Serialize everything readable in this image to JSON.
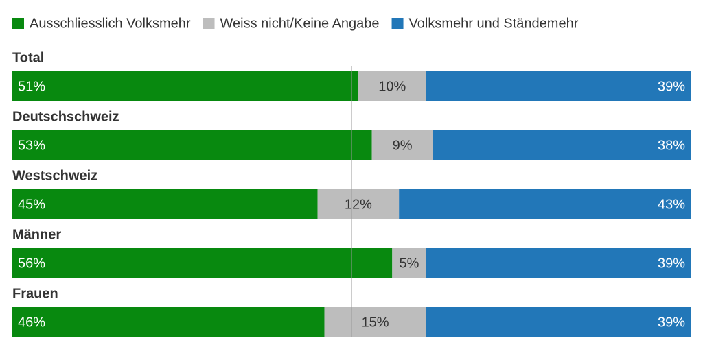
{
  "chart_data": {
    "type": "stacked-bar-horizontal",
    "categories": [
      "Total",
      "Deutschschweiz",
      "Westschweiz",
      "Männer",
      "Frauen"
    ],
    "series": [
      {
        "name": "Ausschliesslich Volksmehr",
        "color": "#08890f",
        "values": [
          51,
          53,
          45,
          56,
          46
        ],
        "value_labels": [
          "51%",
          "53%",
          "45%",
          "56%",
          "46%"
        ]
      },
      {
        "name": "Weiss nicht/Keine Angabe",
        "color": "#bdbdbd",
        "values": [
          10,
          9,
          12,
          5,
          15
        ],
        "value_labels": [
          "10%",
          "9%",
          "12%",
          "5%",
          "15%"
        ]
      },
      {
        "name": "Volksmehr und Ständemehr",
        "color": "#2277b8",
        "values": [
          39,
          38,
          43,
          39,
          39
        ],
        "value_labels": [
          "39%",
          "38%",
          "43%",
          "39%",
          "39%"
        ]
      }
    ],
    "xlim": [
      0,
      100
    ],
    "reference_line": 50
  }
}
